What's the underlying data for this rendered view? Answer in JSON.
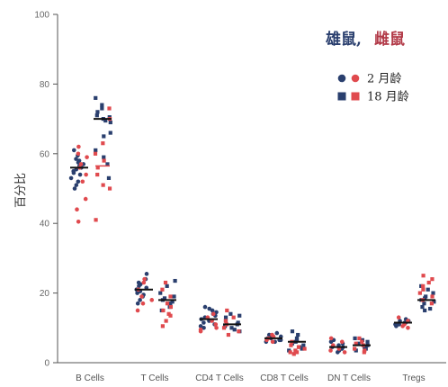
{
  "chart_data": {
    "type": "scatter",
    "title_part1": "雄鼠,",
    "title_part2": "雌鼠",
    "ylabel": "百分比",
    "xlabel": "",
    "ylim": [
      0,
      100
    ],
    "yticks": [
      0,
      20,
      40,
      60,
      80,
      100
    ],
    "categories": [
      "B Cells",
      "T Cells",
      "CD4 T Cells",
      "CD8 T Cells",
      "DN T Cells",
      "Tregs"
    ],
    "legend": [
      {
        "label": "2 月龄",
        "marker": "circle"
      },
      {
        "label": "18 月龄",
        "marker": "square"
      }
    ],
    "colors": {
      "male": "#2a3f6e",
      "female": "#e04a4e",
      "mean_2mo": "#111111",
      "mean_18mo_female": "#e04a4e"
    },
    "series": [
      {
        "category": "B Cells",
        "age": "2 月龄",
        "mean": 56,
        "male": [
          61,
          59.5,
          58,
          57.5,
          57,
          56,
          55.5,
          55,
          54.5,
          54,
          53,
          52,
          51,
          50,
          58.5,
          56.5
        ],
        "female": [
          62,
          60,
          59,
          57,
          56,
          54,
          52,
          47,
          44,
          40.5
        ]
      },
      {
        "category": "B Cells",
        "age": "18 月龄",
        "mean": 70,
        "mean_female": 56.5,
        "male": [
          76,
          74,
          73,
          72,
          71,
          70.5,
          70,
          69.5,
          69,
          66,
          65,
          61,
          59,
          57,
          53
        ],
        "female": [
          73,
          70,
          63,
          60,
          58,
          56,
          54,
          51,
          50,
          41
        ]
      },
      {
        "category": "T Cells",
        "age": "2 月龄",
        "mean": 21,
        "male": [
          25.5,
          24,
          23,
          22.5,
          22,
          21.5,
          21,
          20.5,
          20,
          19.5,
          19,
          18,
          17
        ],
        "female": [
          24,
          23,
          21,
          19,
          18,
          17,
          15
        ]
      },
      {
        "category": "T Cells",
        "age": "18 月龄",
        "mean": 18,
        "male": [
          23.5,
          22,
          20,
          19,
          18.5,
          18,
          17.5,
          17,
          16,
          15
        ],
        "female": [
          23,
          21,
          19,
          17,
          16,
          15,
          14,
          13.5,
          12,
          10.5
        ]
      },
      {
        "category": "CD4 T Cells",
        "age": "2 月龄",
        "mean": 12.5,
        "male": [
          16,
          15.5,
          15,
          14.5,
          14,
          13.5,
          13,
          12.5,
          12,
          11.5,
          11,
          10.5,
          10
        ],
        "female": [
          14,
          13,
          12,
          11,
          10,
          9.5,
          9
        ]
      },
      {
        "category": "CD4 T Cells",
        "age": "18 月龄",
        "mean": 11,
        "male": [
          14,
          13.5,
          13,
          12,
          11.5,
          11,
          10.5,
          10,
          9.5,
          9
        ],
        "female": [
          15,
          13,
          12,
          11,
          10,
          9,
          8
        ]
      },
      {
        "category": "CD8 T Cells",
        "age": "2 月龄",
        "mean": 7,
        "male": [
          8.5,
          8,
          7.5,
          7.5,
          7,
          7,
          6.5,
          6.5,
          6,
          6
        ],
        "female": [
          8,
          7.5,
          7,
          6.5,
          6
        ]
      },
      {
        "category": "CD8 T Cells",
        "age": "18 月龄",
        "mean": 6,
        "male": [
          9,
          8,
          7,
          6.5,
          6,
          5.5,
          5,
          4.5,
          4,
          3.5
        ],
        "female": [
          6,
          5,
          4.5,
          4,
          3.5,
          3,
          3,
          2.5
        ]
      },
      {
        "category": "DN T Cells",
        "age": "2 月龄",
        "mean": 4.5,
        "male": [
          6.5,
          6,
          5.5,
          5,
          4.5,
          4.5,
          4,
          3.5,
          3
        ],
        "female": [
          7,
          6,
          5,
          4,
          3.5,
          3
        ]
      },
      {
        "category": "DN T Cells",
        "age": "18 月龄",
        "mean": 5,
        "male": [
          7,
          6.5,
          6,
          5.5,
          5,
          4.5,
          4,
          3.5
        ],
        "female": [
          7,
          6,
          5.5,
          5,
          4,
          3.5,
          3
        ]
      },
      {
        "category": "Tregs",
        "age": "2 月龄",
        "mean": 11.5,
        "male": [
          12.5,
          12,
          12,
          11.5,
          11.5,
          11,
          11,
          10.5
        ],
        "female": [
          13,
          12,
          11,
          10.5,
          10
        ]
      },
      {
        "category": "Tregs",
        "age": "18 月龄",
        "mean": 18,
        "male": [
          22,
          21,
          20,
          19,
          18.5,
          18,
          17.5,
          17,
          16,
          15.5,
          15
        ],
        "female": [
          25,
          24,
          23,
          22,
          21,
          20,
          19,
          18,
          17
        ]
      }
    ]
  }
}
